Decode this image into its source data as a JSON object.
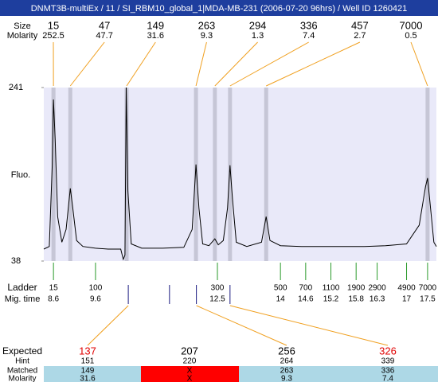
{
  "chart_data": {
    "type": "line",
    "title": "DNMT3B-multiEx / 11 / SI_RBM10_global_1|MDA-MB-231 (2006-07-20 96hrs) / Well ID 1260421",
    "ylabel": "Fluo.",
    "ylim": [
      38,
      241
    ],
    "yticks": [
      38,
      241
    ],
    "xlim": [
      8.37,
      17.71
    ],
    "x": [
      8.37,
      8.5,
      8.57,
      8.6,
      8.64,
      8.7,
      8.8,
      8.9,
      9.0,
      9.06,
      9.15,
      9.3,
      9.6,
      9.9,
      10.2,
      10.26,
      10.3,
      10.33,
      10.37,
      10.45,
      10.7,
      11.2,
      11.7,
      11.9,
      11.99,
      12.06,
      12.15,
      12.3,
      12.44,
      12.52,
      12.64,
      12.74,
      12.8,
      12.86,
      12.95,
      13.2,
      13.55,
      13.66,
      13.75,
      14.0,
      14.5,
      15.0,
      15.5,
      16.0,
      16.5,
      17.0,
      17.3,
      17.45,
      17.5,
      17.56,
      17.65,
      17.71
    ],
    "series": [
      {
        "name": "Trace",
        "color": "#000000",
        "values": [
          52,
          55,
          150,
          227,
          180,
          90,
          60,
          75,
          123,
          100,
          62,
          55,
          53,
          52,
          52,
          40,
          45,
          241,
          120,
          58,
          53,
          53,
          54,
          75,
          151,
          100,
          58,
          56,
          64,
          57,
          62,
          100,
          150,
          110,
          60,
          55,
          60,
          90,
          62,
          56,
          55,
          55,
          55,
          55,
          56,
          58,
          80,
          125,
          135,
          105,
          60,
          55
        ]
      }
    ],
    "peaks": {
      "size_label": "Size",
      "molarity_label": "Molarity",
      "sizes": [
        "15",
        "47",
        "149",
        "263",
        "294",
        "336",
        "457",
        "7000"
      ],
      "molarity": [
        "252.5",
        "47.7",
        "31.6",
        "9.3",
        "1.3",
        "7.4",
        "2.7",
        "0.5"
      ],
      "mig_times": [
        8.6,
        9.0,
        10.34,
        11.99,
        12.44,
        12.8,
        13.66,
        17.5
      ]
    },
    "ladder": {
      "label": "Ladder",
      "time_label": "Mig. time",
      "sizes": [
        "15",
        "100",
        "300",
        "500",
        "700",
        "1100",
        "1900",
        "2900",
        "4900",
        "7000"
      ],
      "mig_times": [
        "8.6",
        "9.6",
        "12.5",
        "14",
        "14.6",
        "15.2",
        "15.8",
        "16.3",
        "17",
        "17.5"
      ]
    },
    "expected": {
      "labels": [
        "Expected",
        "Hint",
        "Matched",
        "Molarity"
      ],
      "columns": [
        {
          "expected": "137",
          "hint": "151",
          "matched": "149",
          "molarity": "31.6",
          "color": "#e00000",
          "mark_time": 10.38
        },
        {
          "expected": "207",
          "hint": "220",
          "matched": "X",
          "molarity": "X",
          "color": "#000000",
          "mark_time": 11.36
        },
        {
          "expected": "256",
          "hint": "264",
          "matched": "263",
          "molarity": "9.3",
          "color": "#000000",
          "mark_time": 12.0
        },
        {
          "expected": "326",
          "hint": "339",
          "matched": "336",
          "molarity": "7.4",
          "color": "#e00000",
          "mark_time": 12.8
        }
      ]
    }
  }
}
